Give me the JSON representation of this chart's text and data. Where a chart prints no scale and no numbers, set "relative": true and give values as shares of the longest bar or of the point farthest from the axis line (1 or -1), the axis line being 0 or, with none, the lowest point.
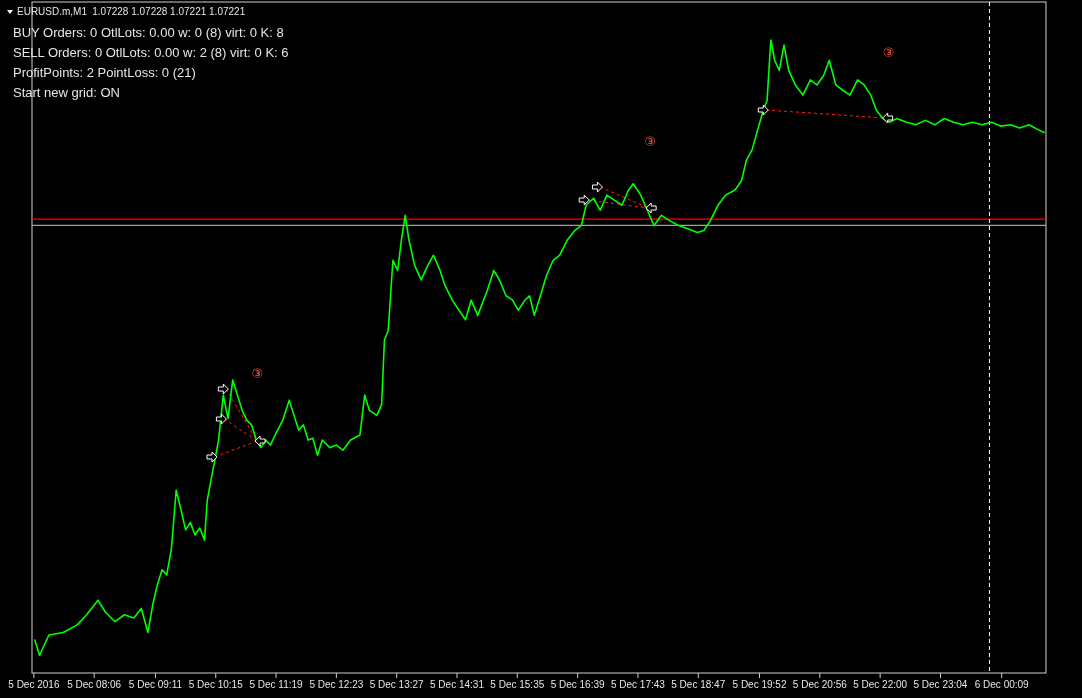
{
  "chart_data": {
    "type": "line",
    "title": "EURUSD.m,M1",
    "subtitle": "1.07228 1.07228 1.07221 1.07221",
    "annotations": [
      "BUY  Orders: 0  OtlLots: 0.00  w: 0 (8)  virt: 0  K: 8",
      "SELL Orders: 0  OtlLots: 0.00  w: 2 (8)  virt: 0  K: 6",
      "ProfitPoints: 2  PointLoss: 0 (21)",
      "Start new grid: ON",
      "③",
      "③",
      "③"
    ],
    "relative": true,
    "xlim": [
      "2016-12-05T07:00",
      "2016-12-06T00:56"
    ],
    "xticks": [
      {
        "value": "2016-12-05T07:02",
        "label": "5 Dec 2016"
      },
      {
        "value": "2016-12-05T08:06",
        "label": "5 Dec 08:06"
      },
      {
        "value": "2016-12-05T09:11",
        "label": "5 Dec 09:11"
      },
      {
        "value": "2016-12-05T10:15",
        "label": "5 Dec 10:15"
      },
      {
        "value": "2016-12-05T11:19",
        "label": "5 Dec 11:19"
      },
      {
        "value": "2016-12-05T12:23",
        "label": "5 Dec 12:23"
      },
      {
        "value": "2016-12-05T13:27",
        "label": "5 Dec 13:27"
      },
      {
        "value": "2016-12-05T14:31",
        "label": "5 Dec 14:31"
      },
      {
        "value": "2016-12-05T15:35",
        "label": "5 Dec 15:35"
      },
      {
        "value": "2016-12-05T16:39",
        "label": "5 Dec 16:39"
      },
      {
        "value": "2016-12-05T17:43",
        "label": "5 Dec 17:43"
      },
      {
        "value": "2016-12-05T18:47",
        "label": "5 Dec 18:47"
      },
      {
        "value": "2016-12-05T19:52",
        "label": "5 Dec 19:52"
      },
      {
        "value": "2016-12-05T20:56",
        "label": "5 Dec 20:56"
      },
      {
        "value": "2016-12-05T22:00",
        "label": "5 Dec 22:00"
      },
      {
        "value": "2016-12-05T23:04",
        "label": "5 Dec 23:04"
      },
      {
        "value": "2016-12-06T00:09",
        "label": "6 Dec 00:09"
      }
    ],
    "x": [
      "2016-12-05T07:03",
      "2016-12-05T07:08",
      "2016-12-05T07:18",
      "2016-12-05T07:33",
      "2016-12-05T07:48",
      "2016-12-05T07:58",
      "2016-12-05T08:10",
      "2016-12-05T08:18",
      "2016-12-05T08:28",
      "2016-12-05T08:38",
      "2016-12-05T08:48",
      "2016-12-05T08:56",
      "2016-12-05T09:03",
      "2016-12-05T09:08",
      "2016-12-05T09:13",
      "2016-12-05T09:18",
      "2016-12-05T09:23",
      "2016-12-05T09:28",
      "2016-12-05T09:33",
      "2016-12-05T09:38",
      "2016-12-05T09:43",
      "2016-12-05T09:48",
      "2016-12-05T09:53",
      "2016-12-05T09:58",
      "2016-12-05T10:03",
      "2016-12-05T10:06",
      "2016-12-05T10:10",
      "2016-12-05T10:14",
      "2016-12-05T10:18",
      "2016-12-05T10:23",
      "2016-12-05T10:28",
      "2016-12-05T10:33",
      "2016-12-05T10:38",
      "2016-12-05T10:43",
      "2016-12-05T10:48",
      "2016-12-05T10:53",
      "2016-12-05T10:58",
      "2016-12-05T11:03",
      "2016-12-05T11:08",
      "2016-12-05T11:13",
      "2016-12-05T11:18",
      "2016-12-05T11:26",
      "2016-12-05T11:33",
      "2016-12-05T11:38",
      "2016-12-05T11:43",
      "2016-12-05T11:48",
      "2016-12-05T11:53",
      "2016-12-05T11:58",
      "2016-12-05T12:03",
      "2016-12-05T12:08",
      "2016-12-05T12:16",
      "2016-12-05T12:23",
      "2016-12-05T12:30",
      "2016-12-05T12:38",
      "2016-12-05T12:48",
      "2016-12-05T12:53",
      "2016-12-05T12:58",
      "2016-12-05T13:06",
      "2016-12-05T13:11",
      "2016-12-05T13:14",
      "2016-12-05T13:18",
      "2016-12-05T13:23",
      "2016-12-05T13:28",
      "2016-12-05T13:32",
      "2016-12-05T13:36",
      "2016-12-05T13:40",
      "2016-12-05T13:46",
      "2016-12-05T13:53",
      "2016-12-05T14:00",
      "2016-12-05T14:06",
      "2016-12-05T14:13",
      "2016-12-05T14:18",
      "2016-12-05T14:26",
      "2016-12-05T14:33",
      "2016-12-05T14:40",
      "2016-12-05T14:46",
      "2016-12-05T14:53",
      "2016-12-05T15:03",
      "2016-12-05T15:10",
      "2016-12-05T15:16",
      "2016-12-05T15:23",
      "2016-12-05T15:30",
      "2016-12-05T15:36",
      "2016-12-05T15:43",
      "2016-12-05T15:48",
      "2016-12-05T15:53",
      "2016-12-05T15:58",
      "2016-12-05T16:06",
      "2016-12-05T16:13",
      "2016-12-05T16:20",
      "2016-12-05T16:28",
      "2016-12-05T16:36",
      "2016-12-05T16:43",
      "2016-12-05T16:48",
      "2016-12-05T16:56",
      "2016-12-05T17:03",
      "2016-12-05T17:10",
      "2016-12-05T17:18",
      "2016-12-05T17:26",
      "2016-12-05T17:33",
      "2016-12-05T17:38",
      "2016-12-05T17:46",
      "2016-12-05T17:53",
      "2016-12-05T18:00",
      "2016-12-05T18:08",
      "2016-12-05T18:16",
      "2016-12-05T18:26",
      "2016-12-05T18:36",
      "2016-12-05T18:46",
      "2016-12-05T18:53",
      "2016-12-05T19:00",
      "2016-12-05T19:08",
      "2016-12-05T19:16",
      "2016-12-05T19:26",
      "2016-12-05T19:33",
      "2016-12-05T19:38",
      "2016-12-05T19:44",
      "2016-12-05T19:50",
      "2016-12-05T19:56",
      "2016-12-05T20:00",
      "2016-12-05T20:04",
      "2016-12-05T20:08",
      "2016-12-05T20:13",
      "2016-12-05T20:18",
      "2016-12-05T20:23",
      "2016-12-05T20:30",
      "2016-12-05T20:38",
      "2016-12-05T20:46",
      "2016-12-05T20:53",
      "2016-12-05T21:00",
      "2016-12-05T21:06",
      "2016-12-05T21:13",
      "2016-12-05T21:20",
      "2016-12-05T21:28",
      "2016-12-05T21:36",
      "2016-12-05T21:43",
      "2016-12-05T21:50",
      "2016-12-05T21:56",
      "2016-12-05T22:03",
      "2016-12-05T22:10",
      "2016-12-05T22:18",
      "2016-12-05T22:28",
      "2016-12-05T22:38",
      "2016-12-05T22:48",
      "2016-12-05T22:58",
      "2016-12-05T23:08",
      "2016-12-05T23:18",
      "2016-12-05T23:28",
      "2016-12-05T23:38",
      "2016-12-05T23:48",
      "2016-12-05T23:58",
      "2016-12-06T00:08",
      "2016-12-06T00:18",
      "2016-12-06T00:28",
      "2016-12-06T00:38",
      "2016-12-06T00:48",
      "2016-12-06T00:54"
    ],
    "series": [
      {
        "color": "#00ff00",
        "values": [
          0.052,
          0.028,
          0.06,
          0.064,
          0.076,
          0.092,
          0.115,
          0.096,
          0.081,
          0.092,
          0.087,
          0.102,
          0.064,
          0.107,
          0.139,
          0.163,
          0.155,
          0.197,
          0.289,
          0.258,
          0.226,
          0.238,
          0.218,
          0.229,
          0.21,
          0.273,
          0.305,
          0.336,
          0.368,
          0.439,
          0.402,
          0.463,
          0.439,
          0.415,
          0.399,
          0.392,
          0.368,
          0.356,
          0.368,
          0.36,
          0.376,
          0.399,
          0.431,
          0.407,
          0.384,
          0.392,
          0.368,
          0.371,
          0.344,
          0.368,
          0.356,
          0.36,
          0.352,
          0.368,
          0.376,
          0.439,
          0.415,
          0.407,
          0.424,
          0.526,
          0.541,
          0.652,
          0.636,
          0.684,
          0.723,
          0.684,
          0.644,
          0.621,
          0.644,
          0.66,
          0.636,
          0.613,
          0.589,
          0.573,
          0.558,
          0.589,
          0.565,
          0.604,
          0.636,
          0.621,
          0.596,
          0.589,
          0.573,
          0.589,
          0.596,
          0.565,
          0.589,
          0.628,
          0.652,
          0.66,
          0.684,
          0.699,
          0.707,
          0.739,
          0.75,
          0.731,
          0.755,
          0.747,
          0.739,
          0.763,
          0.773,
          0.755,
          0.731,
          0.707,
          0.723,
          0.715,
          0.707,
          0.702,
          0.696,
          0.699,
          0.715,
          0.739,
          0.755,
          0.763,
          0.778,
          0.81,
          0.826,
          0.858,
          0.889,
          0.904,
          1,
          0.968,
          0.952,
          0.992,
          0.952,
          0.929,
          0.913,
          0.937,
          0.929,
          0.944,
          0.968,
          0.929,
          0.921,
          0.913,
          0.937,
          0.929,
          0.913,
          0.889,
          0.876,
          0.87,
          0.876,
          0.87,
          0.866,
          0.873,
          0.866,
          0.876,
          0.87,
          0.866,
          0.87,
          0.866,
          0.87,
          0.864,
          0.866,
          0.861,
          0.866,
          0.858,
          0.854
        ]
      }
    ],
    "ref_lines": [
      {
        "axis": "y",
        "value": 0.717,
        "color": "#ff0000",
        "line_style": "solid"
      },
      {
        "axis": "y",
        "value": 0.707,
        "color": "#a0a0a0",
        "line_style": "solid"
      },
      {
        "axis": "x",
        "value": "2016-12-05T23:56",
        "color": "#ffffff",
        "line_style": "dashed"
      }
    ]
  }
}
